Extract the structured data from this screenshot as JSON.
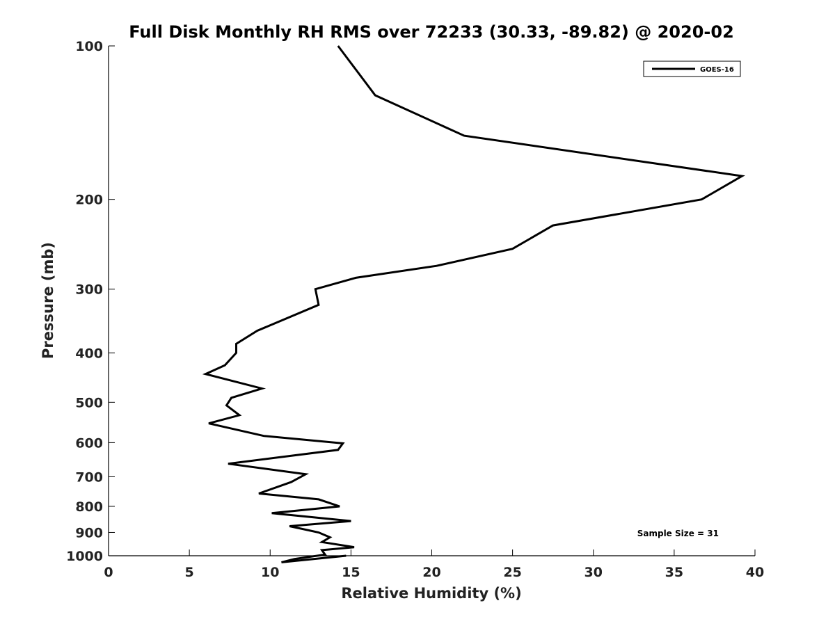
{
  "chart_data": {
    "type": "line",
    "title": "Full Disk Monthly RH RMS over 72233 (30.33, -89.82) @ 2020-02",
    "xlabel": "Relative Humidity (%)",
    "ylabel": "Pressure (mb)",
    "xlim": [
      0,
      40
    ],
    "ylim": [
      100,
      1000
    ],
    "y_scale": "log",
    "y_reversed": true,
    "x_ticks": [
      0,
      5,
      10,
      15,
      20,
      25,
      30,
      35,
      40
    ],
    "y_ticks": [
      100,
      200,
      300,
      400,
      500,
      600,
      700,
      800,
      900,
      1000
    ],
    "grid": false,
    "legend_position": "top-right",
    "annotation": "Sample Size = 31",
    "series": [
      {
        "name": "GOES-16",
        "color": "#000000",
        "x": [
          14.2,
          16.5,
          22.0,
          39.2,
          36.7,
          27.5,
          25.0,
          20.3,
          15.3,
          12.8,
          13.0,
          9.2,
          7.9,
          7.9,
          7.2,
          6.0,
          9.5,
          7.6,
          7.3,
          8.1,
          6.2,
          9.6,
          14.5,
          14.2,
          7.4,
          12.2,
          11.3,
          9.3,
          13.0,
          14.3,
          10.1,
          15.0,
          11.2,
          13.0,
          13.7,
          13.2,
          15.2,
          13.2,
          13.4,
          11.5,
          10.7,
          14.7
        ],
        "y": [
          100,
          125,
          150,
          180,
          200,
          225,
          250,
          270,
          285,
          300,
          322,
          362,
          384,
          400,
          423,
          440,
          470,
          490,
          507,
          530,
          550,
          582,
          602,
          620,
          660,
          692,
          717,
          755,
          775,
          800,
          825,
          855,
          875,
          900,
          920,
          940,
          962,
          975,
          995,
          1015,
          1030,
          1000
        ]
      }
    ]
  }
}
